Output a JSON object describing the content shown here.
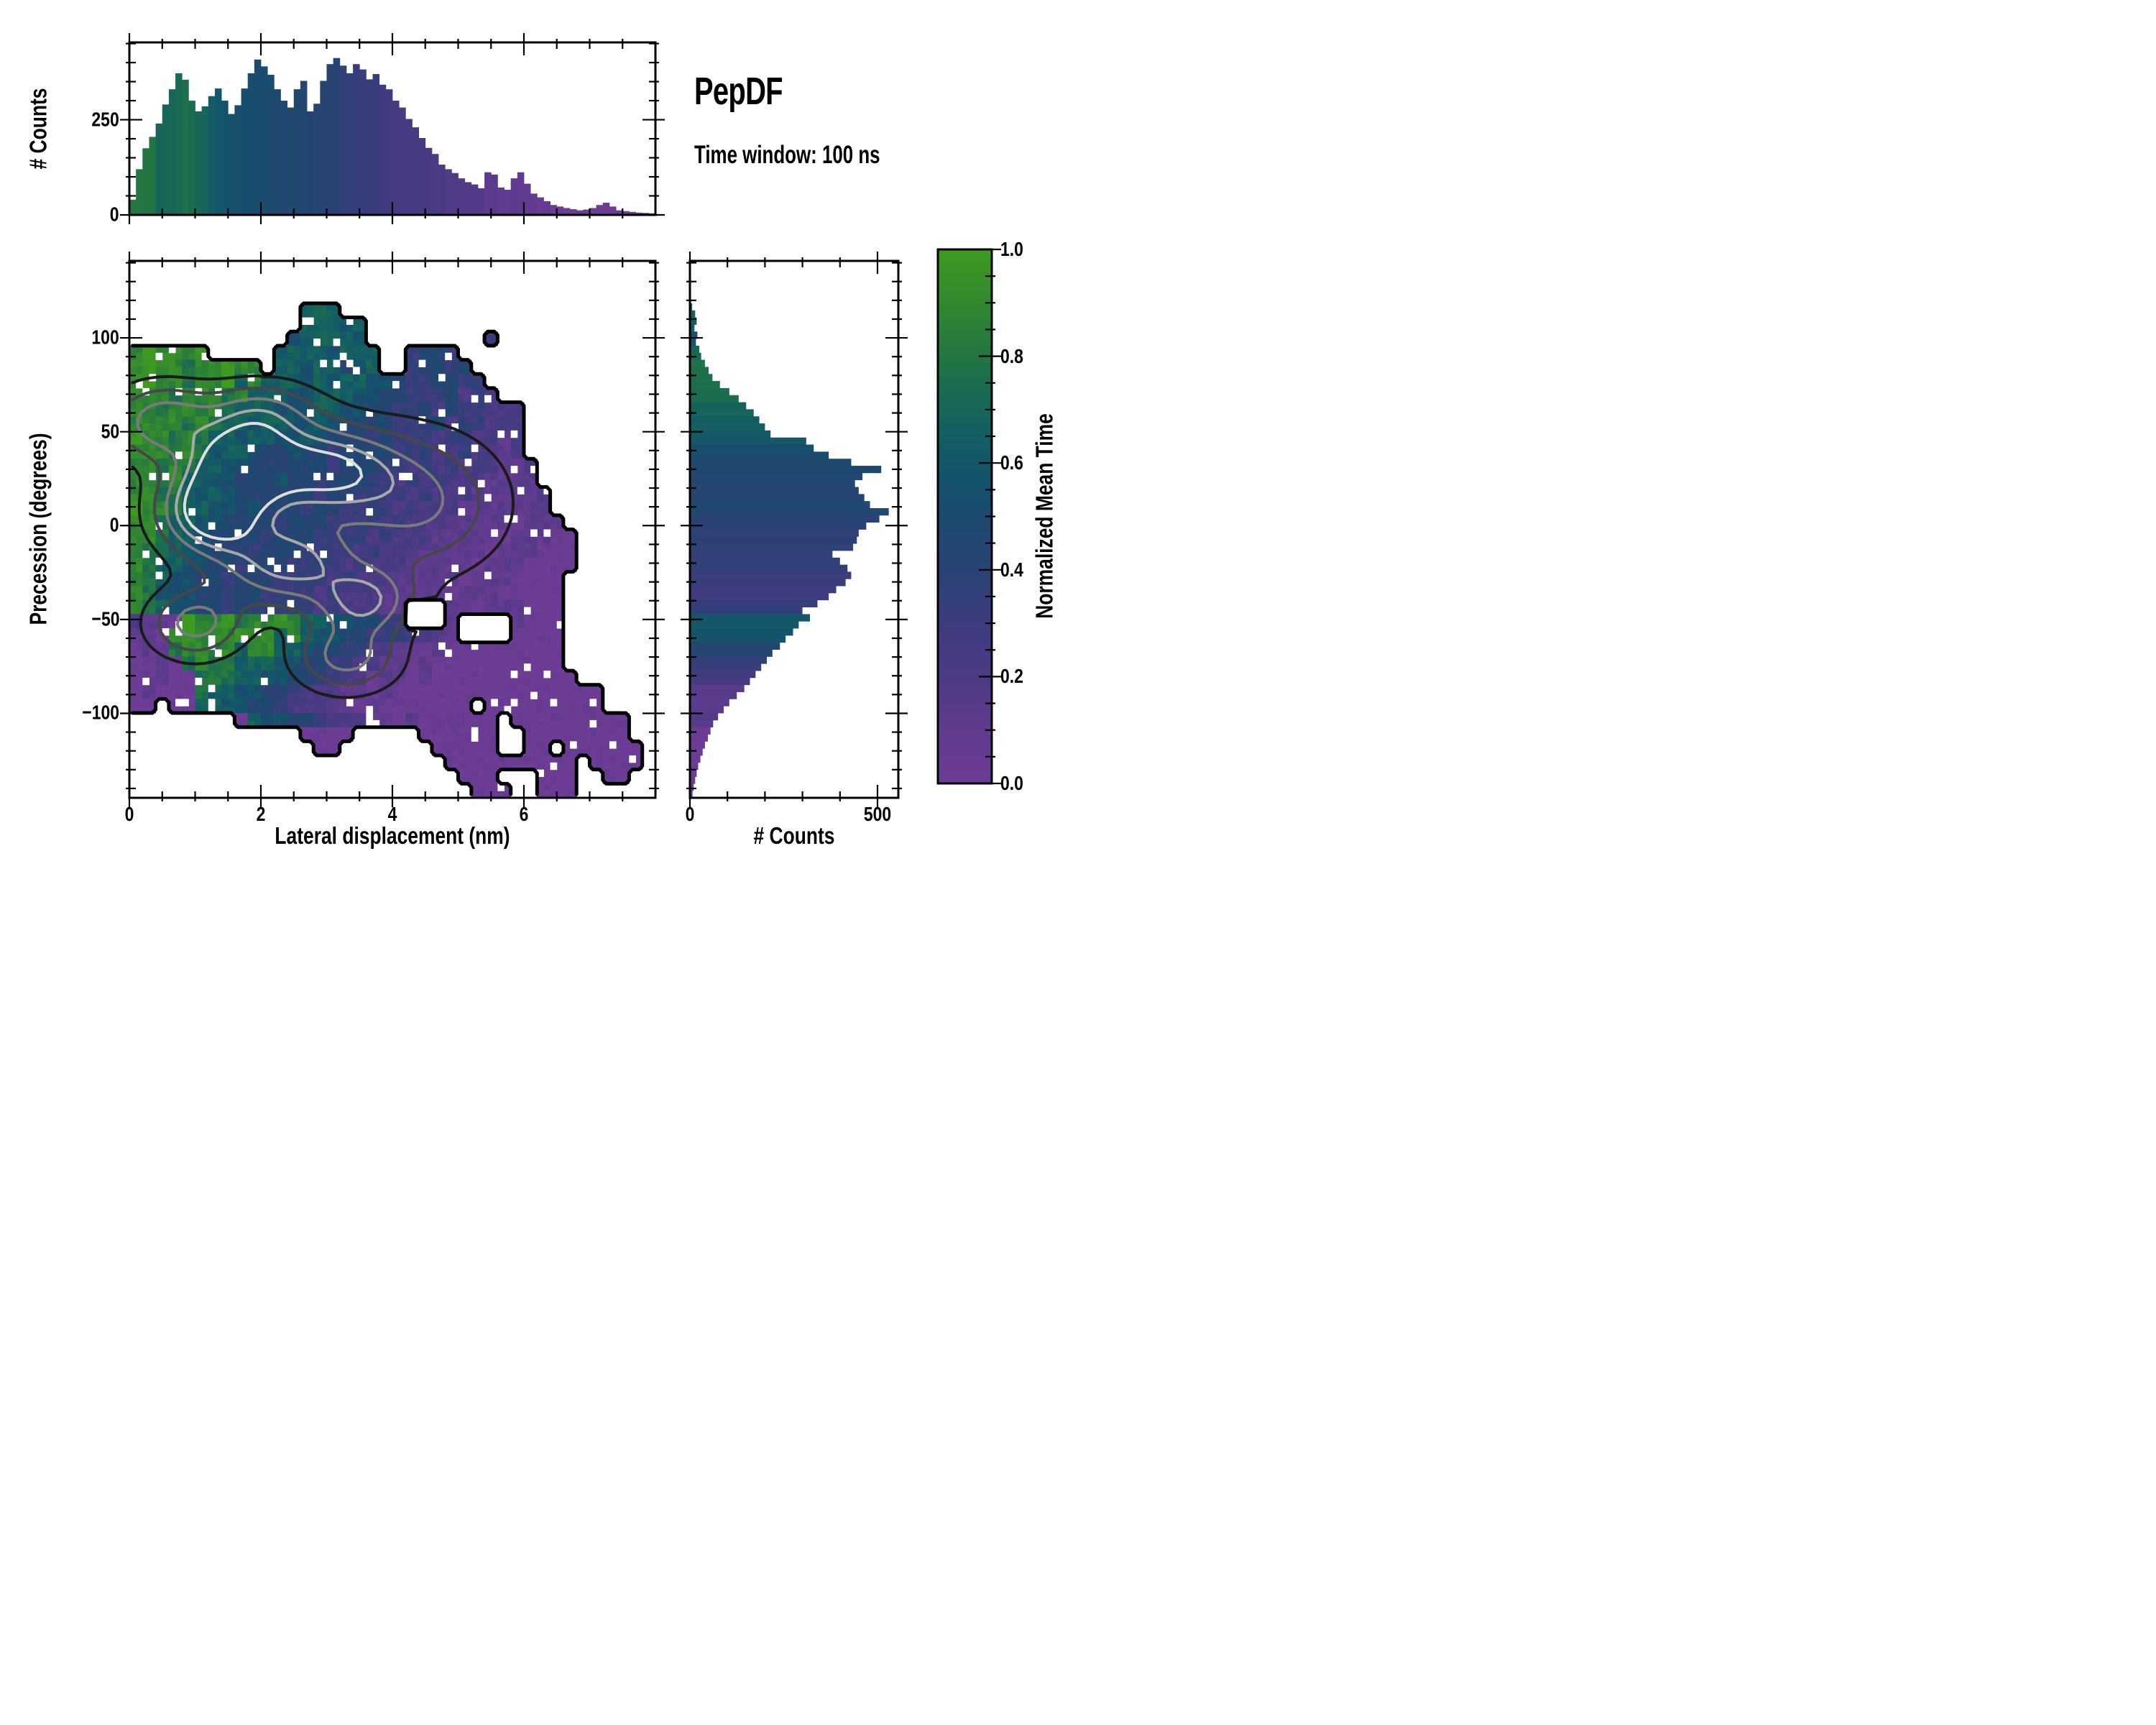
{
  "title": "PepDF",
  "subtitle": "Time window: 100 ns",
  "top_hist": {
    "ylabel": "# Counts",
    "ytick_labels": [
      "250",
      "0"
    ]
  },
  "main": {
    "xlabel": "Lateral displacement (nm)",
    "ylabel": "Precession (degrees)",
    "xtick_labels": [
      "0",
      "2",
      "4",
      "6"
    ],
    "ytick_labels": [
      "100",
      "50",
      "0",
      "−50",
      "−100"
    ]
  },
  "right_hist": {
    "xlabel": "# Counts",
    "xtick_labels": [
      "0",
      "500"
    ]
  },
  "colorbar": {
    "label": "Normalized Mean Time",
    "tick_labels": [
      "1.0",
      "0.8",
      "0.6",
      "0.4",
      "0.2",
      "0.0"
    ]
  },
  "chart_data": {
    "type": "heatmap",
    "title": "PepDF",
    "subtitle": "Time window: 100 ns",
    "xlabel": "Lateral displacement (nm)",
    "ylabel": "Precession (degrees)",
    "x_range": [
      0,
      8
    ],
    "y_range": [
      -145,
      141
    ],
    "grid_on": false,
    "colorbar_label": "Normalized Mean Time",
    "color_range": [
      0,
      1
    ],
    "colorbar_major_tick": 0.2,
    "colormap_stops": [
      [
        0.0,
        "#6d3c94"
      ],
      [
        0.1,
        "#5f3b8e"
      ],
      [
        0.2,
        "#4d3a85"
      ],
      [
        0.3,
        "#3c3c7e"
      ],
      [
        0.4,
        "#2a4374"
      ],
      [
        0.5,
        "#1c4a6e"
      ],
      [
        0.58,
        "#14536b"
      ],
      [
        0.66,
        "#135f62"
      ],
      [
        0.74,
        "#1a6b51"
      ],
      [
        0.82,
        "#26793e"
      ],
      [
        0.9,
        "#32882f"
      ],
      [
        1.0,
        "#3f9a22"
      ]
    ],
    "grid": {
      "cols": 40,
      "rows": 38,
      "cell_nm": 0.2,
      "cell_deg": 7.5,
      "encoding": "digit/9 = normalized mean time of cell, '.' = empty bin",
      "rows_data": [
        "........................................",
        "........................................",
        "........................................",
        ".............666........................",
        ".............66656......................",
        "............566665.........3............",
        "898889.....56665666..3443...............",
        "8988788988.66566456..34434..............",
        "898878896866656566554334433.............",
        "8887888786665566655443334232............",
        "887887876665556655443342433222..........",
        "888878766566556554443334233222..........",
        "988787665665565444343332332212..........",
        "888787566544544344443332232212..........",
        "8878766554444443444332323222112.........",
        "8878665544454434443323232221111.........",
        "88776565444444344333323222111112........",
        "98876655454443443333232221111111........",
        "887665544443444333323222111110111.......",
        "8876654444344433332322211111011100......",
        "8776554443444333323222111110111000......",
        "8766554434443333232221111101110000......",
        "876554434443333232221111101110000.......",
        "875554434433332322211111011100000.......",
        "876554434433332322211...110111000.......",
        "211098897889866554433...1....1000.......",
        "1108988898868655443332211....0000.......",
        "011788786886654433221101000000000.......",
        "001078776665544332211010000000000.......",
        "0010077766554433220110100000000000......",
        "010007665544322211010000000000000000....",
        "00.00665544322211010000000.000000000....",
        "........06554432221101000000.000000000..",
        ".............0000.....000000..00000000..",
        "..............00.......00000..00.000000.",
        "........................0000000000.0000.",
        ".........................000...000..00..",
        "..........................000..000......"
      ]
    },
    "top_hist": {
      "type": "bar",
      "ylabel": "# Counts",
      "bin_nm": 0.1,
      "ymax": 453,
      "yticks": [
        0,
        250
      ],
      "values": [
        40,
        120,
        175,
        205,
        240,
        290,
        330,
        372,
        355,
        300,
        272,
        285,
        312,
        332,
        300,
        265,
        288,
        332,
        372,
        408,
        390,
        368,
        330,
        300,
        282,
        330,
        352,
        272,
        292,
        352,
        396,
        412,
        392,
        372,
        396,
        382,
        356,
        370,
        342,
        330,
        300,
        282,
        252,
        230,
        202,
        176,
        160,
        132,
        120,
        110,
        96,
        86,
        80,
        70,
        112,
        106,
        72,
        66,
        96,
        112,
        82,
        56,
        46,
        36,
        26,
        22,
        18,
        15,
        12,
        14,
        18,
        26,
        32,
        22,
        12,
        10,
        8,
        6,
        5,
        4
      ]
    },
    "right_hist": {
      "type": "bar",
      "xlabel": "# Counts",
      "bin_deg": 3.75,
      "start_deg": 141,
      "xmax": 555,
      "xticks": [
        0,
        500
      ],
      "values": [
        0,
        0,
        0,
        0,
        0,
        0,
        6,
        14,
        18,
        12,
        20,
        16,
        25,
        30,
        40,
        50,
        60,
        80,
        105,
        130,
        150,
        170,
        185,
        200,
        215,
        310,
        330,
        370,
        430,
        510,
        460,
        440,
        450,
        465,
        480,
        530,
        505,
        470,
        450,
        445,
        435,
        380,
        400,
        420,
        430,
        415,
        390,
        370,
        340,
        300,
        320,
        290,
        275,
        255,
        240,
        220,
        205,
        190,
        175,
        160,
        145,
        125,
        105,
        90,
        75,
        62,
        55,
        48,
        40,
        34,
        28,
        22,
        18,
        14,
        10,
        7
      ]
    },
    "contour_levels": [
      0.14,
      0.3,
      0.48,
      0.66,
      0.82
    ],
    "contour_colors": [
      "#1b1b1b",
      "#474747",
      "#7a7a7a",
      "#a8a8a8",
      "#dedede"
    ],
    "contour_hotspots": [
      [
        1.25,
        8,
        0.55,
        16,
        1.0
      ],
      [
        1.7,
        33,
        0.5,
        14,
        0.85
      ],
      [
        2.9,
        30,
        0.75,
        16,
        0.8
      ],
      [
        0.5,
        55,
        0.55,
        14,
        0.6
      ],
      [
        2.4,
        -20,
        0.7,
        16,
        0.7
      ],
      [
        1.0,
        -52,
        0.5,
        13,
        0.55
      ],
      [
        3.3,
        -70,
        0.55,
        13,
        0.55
      ],
      [
        3.6,
        -40,
        0.5,
        12,
        0.6
      ],
      [
        4.4,
        12,
        0.9,
        26,
        0.5
      ],
      [
        2.0,
        60,
        0.6,
        12,
        0.5
      ]
    ]
  }
}
